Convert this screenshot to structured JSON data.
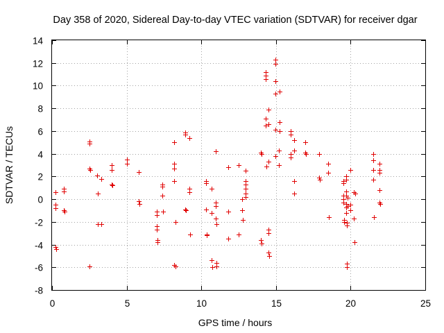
{
  "chart_data": {
    "type": "scatter",
    "title": "Day 358 of 2020, Sidereal Day-to-day VTEC variation (SDTVAR) for receiver dgar",
    "xlabel": "GPS time / hours",
    "ylabel": "SDTVAR / TECUs",
    "xlim": [
      0,
      25
    ],
    "ylim": [
      -8,
      14
    ],
    "xticks": [
      0,
      5,
      10,
      15,
      20,
      25
    ],
    "yticks": [
      -8,
      -6,
      -4,
      -2,
      0,
      2,
      4,
      6,
      8,
      10,
      12,
      14
    ],
    "grid": true,
    "marker": "+",
    "color": "#e00000",
    "series": [
      {
        "name": "SDTVAR",
        "points": [
          [
            0.25,
            0.6
          ],
          [
            0.25,
            -0.5
          ],
          [
            0.25,
            -0.8
          ],
          [
            0.25,
            -4.2
          ],
          [
            0.3,
            -4.4
          ],
          [
            0.8,
            0.9
          ],
          [
            0.8,
            0.7
          ],
          [
            0.8,
            -1.0
          ],
          [
            0.85,
            -1.1
          ],
          [
            2.5,
            5.1
          ],
          [
            2.5,
            4.9
          ],
          [
            2.5,
            2.7
          ],
          [
            2.55,
            2.6
          ],
          [
            2.5,
            -5.9
          ],
          [
            3.0,
            2.1
          ],
          [
            3.05,
            0.5
          ],
          [
            3.05,
            -2.2
          ],
          [
            3.3,
            1.8
          ],
          [
            3.3,
            -2.2
          ],
          [
            4.0,
            3.0
          ],
          [
            4.0,
            2.6
          ],
          [
            4.0,
            1.3
          ],
          [
            4.05,
            1.2
          ],
          [
            5.0,
            3.5
          ],
          [
            5.0,
            3.1
          ],
          [
            5.8,
            2.4
          ],
          [
            5.8,
            -0.2
          ],
          [
            5.85,
            -0.4
          ],
          [
            7.0,
            -1.1
          ],
          [
            7.0,
            -1.4
          ],
          [
            7.0,
            -2.4
          ],
          [
            7.0,
            -2.7
          ],
          [
            7.05,
            -3.6
          ],
          [
            7.05,
            -3.8
          ],
          [
            7.4,
            1.3
          ],
          [
            7.4,
            1.1
          ],
          [
            7.4,
            0.3
          ],
          [
            7.45,
            -1.1
          ],
          [
            8.2,
            5.0
          ],
          [
            8.2,
            3.1
          ],
          [
            8.2,
            2.7
          ],
          [
            8.2,
            1.6
          ],
          [
            8.25,
            -2.0
          ],
          [
            8.2,
            -5.8
          ],
          [
            8.25,
            -5.9
          ],
          [
            8.9,
            5.9
          ],
          [
            8.9,
            5.7
          ],
          [
            8.9,
            -0.9
          ],
          [
            8.95,
            -1.0
          ],
          [
            9.2,
            5.4
          ],
          [
            9.2,
            0.9
          ],
          [
            9.2,
            0.6
          ],
          [
            9.25,
            -3.1
          ],
          [
            10.3,
            1.6
          ],
          [
            10.3,
            1.4
          ],
          [
            10.3,
            -0.9
          ],
          [
            10.35,
            -3.1
          ],
          [
            10.35,
            -3.2
          ],
          [
            10.7,
            0.9
          ],
          [
            10.7,
            -1.2
          ],
          [
            10.7,
            -5.4
          ],
          [
            10.75,
            -6.0
          ],
          [
            10.95,
            4.2
          ],
          [
            10.95,
            -0.3
          ],
          [
            10.95,
            -0.6
          ],
          [
            10.95,
            -1.7
          ],
          [
            11.0,
            -2.2
          ],
          [
            11.0,
            -5.6
          ],
          [
            11.0,
            -5.9
          ],
          [
            11.8,
            2.8
          ],
          [
            11.8,
            -1.1
          ],
          [
            11.8,
            -3.5
          ],
          [
            12.5,
            3.0
          ],
          [
            12.5,
            -3.1
          ],
          [
            12.75,
            0.0
          ],
          [
            12.75,
            -1.0
          ],
          [
            12.8,
            -1.8
          ],
          [
            12.95,
            2.5
          ],
          [
            12.95,
            1.6
          ],
          [
            12.95,
            1.3
          ],
          [
            12.95,
            0.9
          ],
          [
            12.95,
            0.5
          ],
          [
            12.95,
            0.2
          ],
          [
            14.0,
            4.1
          ],
          [
            14.05,
            4.0
          ],
          [
            14.0,
            -3.6
          ],
          [
            14.05,
            -3.9
          ],
          [
            14.3,
            11.2
          ],
          [
            14.3,
            10.9
          ],
          [
            14.3,
            10.6
          ],
          [
            14.3,
            7.1
          ],
          [
            14.3,
            6.5
          ],
          [
            14.35,
            2.9
          ],
          [
            14.5,
            7.9
          ],
          [
            14.5,
            6.6
          ],
          [
            14.5,
            3.3
          ],
          [
            14.5,
            -2.7
          ],
          [
            14.5,
            -3.0
          ],
          [
            14.5,
            -4.7
          ],
          [
            14.55,
            -5.0
          ],
          [
            14.95,
            12.3
          ],
          [
            14.95,
            11.9
          ],
          [
            14.95,
            10.4
          ],
          [
            14.95,
            9.3
          ],
          [
            14.95,
            6.1
          ],
          [
            14.95,
            3.8
          ],
          [
            15.25,
            9.5
          ],
          [
            15.25,
            6.8
          ],
          [
            15.25,
            6.0
          ],
          [
            15.2,
            4.3
          ],
          [
            15.2,
            3.0
          ],
          [
            16.0,
            6.0
          ],
          [
            16.0,
            5.7
          ],
          [
            16.0,
            4.0
          ],
          [
            16.0,
            3.7
          ],
          [
            16.2,
            5.2
          ],
          [
            16.2,
            4.3
          ],
          [
            16.2,
            1.6
          ],
          [
            16.2,
            0.5
          ],
          [
            16.95,
            5.0
          ],
          [
            16.95,
            4.1
          ],
          [
            17.0,
            4.0
          ],
          [
            17.9,
            4.0
          ],
          [
            17.9,
            1.9
          ],
          [
            17.95,
            1.7
          ],
          [
            18.5,
            3.1
          ],
          [
            18.5,
            2.3
          ],
          [
            18.55,
            -1.6
          ],
          [
            19.5,
            1.6
          ],
          [
            19.5,
            1.4
          ],
          [
            19.5,
            0.3
          ],
          [
            19.5,
            0.0
          ],
          [
            19.5,
            -0.3
          ],
          [
            19.55,
            -1.8
          ],
          [
            19.55,
            -2.0
          ],
          [
            19.7,
            2.0
          ],
          [
            19.7,
            1.7
          ],
          [
            19.7,
            0.7
          ],
          [
            19.7,
            0.3
          ],
          [
            19.7,
            -0.4
          ],
          [
            19.7,
            -0.7
          ],
          [
            19.7,
            -1.2
          ],
          [
            19.75,
            -2.1
          ],
          [
            19.75,
            -2.3
          ],
          [
            19.75,
            -5.7
          ],
          [
            19.75,
            -6.0
          ],
          [
            19.8,
            0.1
          ],
          [
            19.8,
            -0.6
          ],
          [
            20.0,
            2.6
          ],
          [
            20.0,
            -0.5
          ],
          [
            20.0,
            -1.0
          ],
          [
            20.2,
            0.6
          ],
          [
            20.2,
            -1.7
          ],
          [
            20.25,
            -3.8
          ],
          [
            20.3,
            0.5
          ],
          [
            21.5,
            4.0
          ],
          [
            21.5,
            3.4
          ],
          [
            21.5,
            2.6
          ],
          [
            21.5,
            1.7
          ],
          [
            21.55,
            -1.6
          ],
          [
            21.95,
            3.1
          ],
          [
            21.95,
            2.6
          ],
          [
            21.95,
            2.3
          ],
          [
            21.95,
            0.8
          ],
          [
            21.95,
            -0.3
          ],
          [
            22.0,
            -0.4
          ]
        ]
      }
    ]
  }
}
